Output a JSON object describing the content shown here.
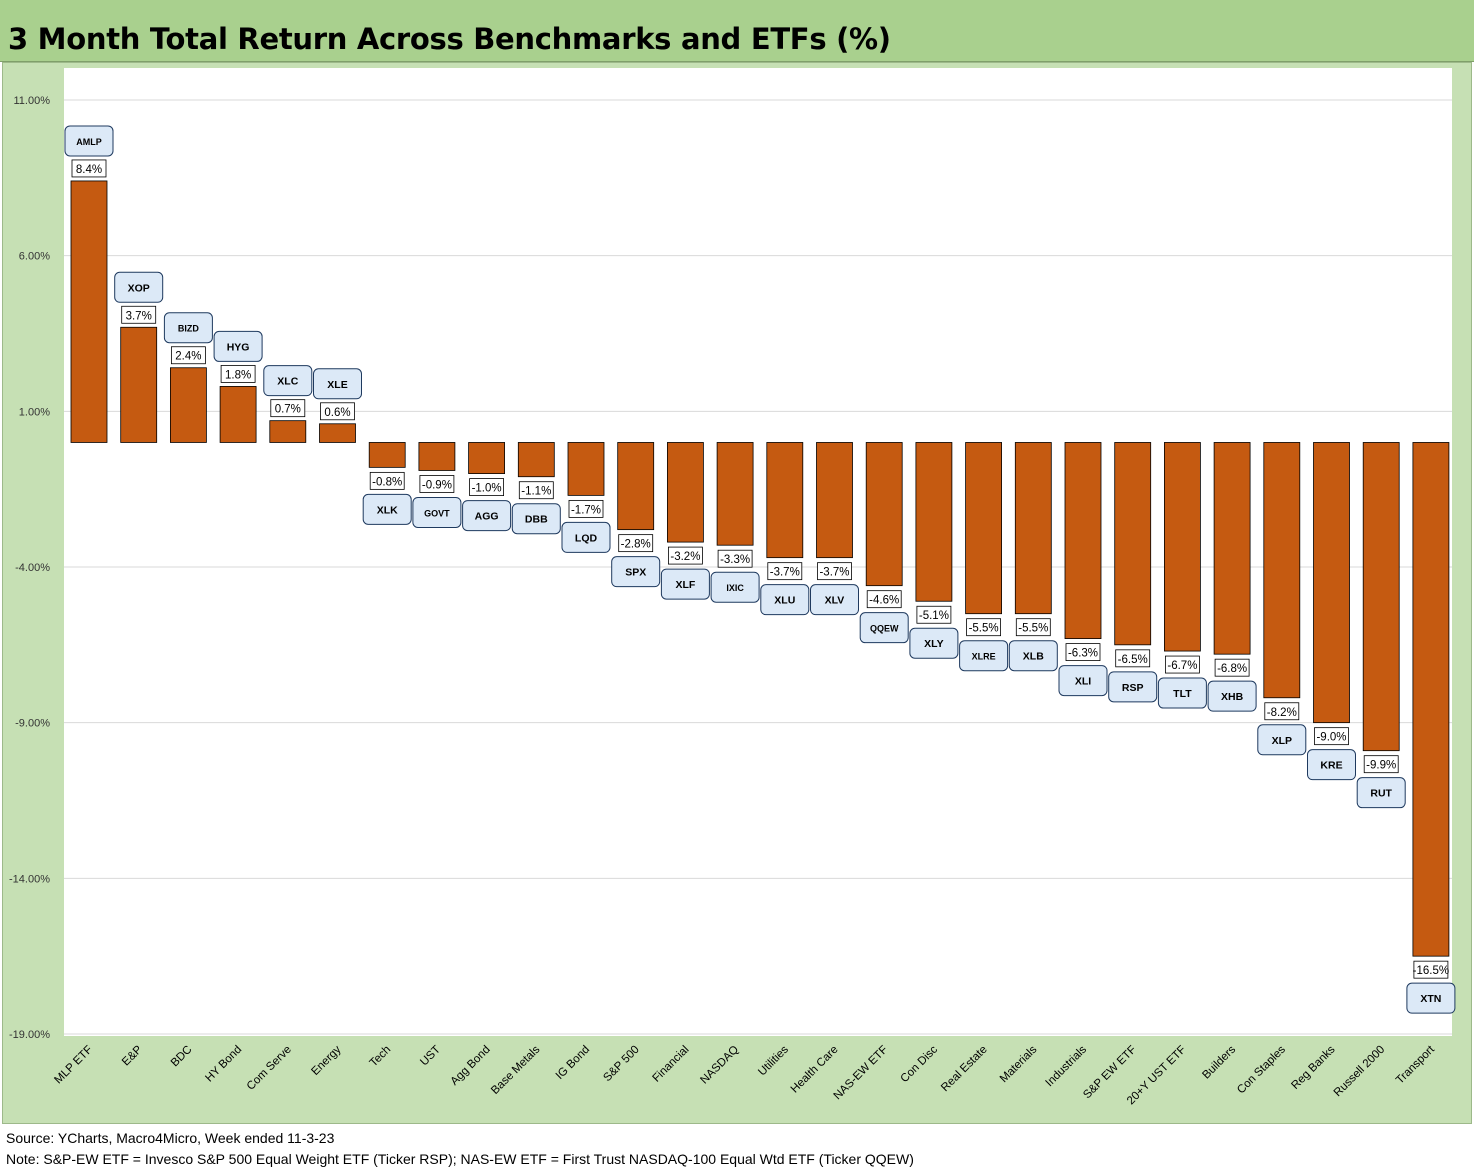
{
  "title": "3 Month Total Return Across Benchmarks and ETFs (%)",
  "notes": {
    "source": "Source: YCharts, Macro4Micro, Week ended 11-3-23",
    "note": "Note: S&P-EW ETF = Invesco S&P 500 Equal Weight ETF (Ticker RSP); NAS-EW ETF = First Trust NASDAQ-100 Equal Wtd ETF (Ticker QQEW)"
  },
  "colors": {
    "bar": "#c55a11",
    "title_bg": "#a9d08e",
    "chart_bg": "#c6e0b4",
    "ticker_box": "#dce9f7"
  },
  "chart_data": {
    "type": "bar",
    "title": "3 Month Total Return Across Benchmarks and ETFs (%)",
    "ylim": [
      -19,
      11
    ],
    "yticks": [
      11,
      6,
      1,
      -4,
      -9,
      -14,
      -19
    ],
    "ytick_labels": [
      "11.00%",
      "6.00%",
      "1.00%",
      "-4.00%",
      "-9.00%",
      "-14.00%",
      "-19.00%"
    ],
    "grid": true,
    "categories": [
      "MLP ETF",
      "E&P",
      "BDC",
      "HY Bond",
      "Com Serve",
      "Energy",
      "Tech",
      "UST",
      "Agg Bond",
      "Base Metals",
      "IG Bond",
      "S&P 500",
      "Financial",
      "NASDAQ",
      "Utilities",
      "Health Care",
      "NAS-EW ETF",
      "Con Disc",
      "Real Estate",
      "Materials",
      "Industrials",
      "S&P EW ETF",
      "20+Y UST ETF",
      "Builders",
      "Con Staples",
      "Reg Banks",
      "Russell 2000",
      "Transport"
    ],
    "tickers": [
      "AMLP",
      "XOP",
      "BIZD",
      "HYG",
      "XLC",
      "XLE",
      "XLK",
      "GOVT",
      "AGG",
      "DBB",
      "LQD",
      "SPX",
      "XLF",
      "IXIC",
      "XLU",
      "XLV",
      "QQEW",
      "XLY",
      "XLRE",
      "XLB",
      "XLI",
      "RSP",
      "TLT",
      "XHB",
      "XLP",
      "KRE",
      "RUT",
      "XTN"
    ],
    "values": [
      8.4,
      3.7,
      2.4,
      1.8,
      0.7,
      0.6,
      -0.8,
      -0.9,
      -1.0,
      -1.1,
      -1.7,
      -2.8,
      -3.2,
      -3.3,
      -3.7,
      -3.7,
      -4.6,
      -5.1,
      -5.5,
      -5.5,
      -6.3,
      -6.5,
      -6.7,
      -6.8,
      -8.2,
      -9.0,
      -9.9,
      -16.5
    ],
    "value_labels": [
      "8.4%",
      "3.7%",
      "2.4%",
      "1.8%",
      "0.7%",
      "0.6%",
      "-0.8%",
      "-0.9%",
      "-1.0%",
      "-1.1%",
      "-1.7%",
      "-2.8%",
      "-3.2%",
      "-3.3%",
      "-3.7%",
      "-3.7%",
      "-4.6%",
      "-5.1%",
      "-5.5%",
      "-5.5%",
      "-6.3%",
      "-6.5%",
      "-6.7%",
      "-6.8%",
      "-8.2%",
      "-9.0%",
      "-9.9%",
      "-16.5%"
    ]
  }
}
